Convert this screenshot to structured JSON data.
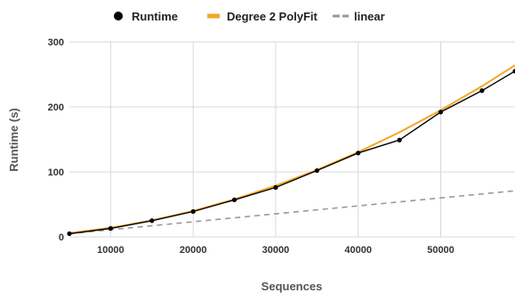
{
  "chart_data": {
    "type": "line",
    "xlabel": "Sequences",
    "ylabel": "Runtime (s)",
    "xlim": [
      5000,
      59000
    ],
    "ylim": [
      0,
      300
    ],
    "x_ticks": [
      10000,
      20000,
      30000,
      40000,
      50000
    ],
    "y_ticks": [
      0,
      100,
      200,
      300
    ],
    "grid": true,
    "legend_position": "top",
    "series": [
      {
        "name": "Runtime",
        "style": "line-markers",
        "color": "#000000",
        "x": [
          5000,
          10000,
          15000,
          20000,
          25000,
          30000,
          35000,
          40000,
          45000,
          50000,
          55000,
          59000
        ],
        "y": [
          5,
          13,
          25,
          39,
          57,
          76,
          102,
          129,
          149,
          192,
          225,
          255
        ]
      },
      {
        "name": "Degree 2 PolyFit",
        "style": "line",
        "color": "#f5a623",
        "x": [
          5000,
          10000,
          15000,
          20000,
          25000,
          30000,
          35000,
          40000,
          45000,
          50000,
          55000,
          59000
        ],
        "y": [
          5.8,
          14,
          25.4,
          40,
          57.8,
          78.8,
          103,
          130.4,
          161,
          194.8,
          231.8,
          264
        ]
      },
      {
        "name": "linear",
        "style": "dashed",
        "color": "#999999",
        "x": [
          5000,
          59000
        ],
        "y": [
          5,
          71
        ]
      }
    ]
  }
}
